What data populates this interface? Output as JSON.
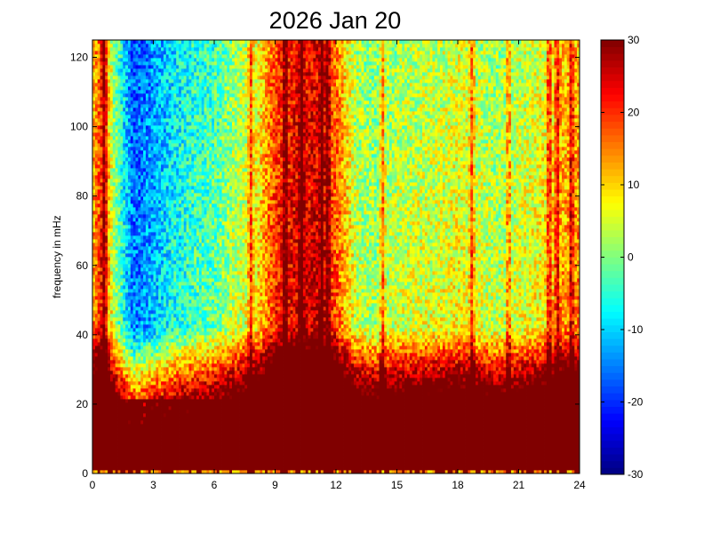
{
  "chart_data": {
    "type": "heatmap",
    "title": "2026 Jan 20",
    "xlabel": "",
    "ylabel": "frequency in mHz",
    "xlim": [
      0,
      24
    ],
    "ylim": [
      0,
      125
    ],
    "x_ticks": [
      "0",
      "3",
      "6",
      "9",
      "12",
      "15",
      "18",
      "21",
      "24"
    ],
    "y_ticks": [
      "0",
      "20",
      "40",
      "60",
      "80",
      "100",
      "120"
    ],
    "colorbar": {
      "range": [
        -30,
        30
      ],
      "ticks": [
        "-30",
        "-20",
        "-10",
        "0",
        "10",
        "20",
        "30"
      ],
      "colormap": "jet"
    },
    "grid": false,
    "background_level_by_hour": [
      [
        0,
        14
      ],
      [
        0.5,
        24
      ],
      [
        1,
        6
      ],
      [
        2,
        -14
      ],
      [
        3,
        -10
      ],
      [
        4,
        -5
      ],
      [
        5,
        -2
      ],
      [
        6,
        0
      ],
      [
        7,
        5
      ],
      [
        8,
        9
      ],
      [
        9,
        22
      ],
      [
        10,
        26
      ],
      [
        11,
        27
      ],
      [
        12,
        20
      ],
      [
        13,
        6
      ],
      [
        14,
        4
      ],
      [
        15,
        6
      ],
      [
        16,
        7
      ],
      [
        17,
        7
      ],
      [
        18,
        9
      ],
      [
        19,
        7
      ],
      [
        20,
        5
      ],
      [
        21,
        7
      ],
      [
        22,
        9
      ],
      [
        23,
        14
      ],
      [
        24,
        16
      ]
    ],
    "low_frequency_saturation_mHz": 22,
    "bright_streaks_hours": [
      0.6,
      7.8,
      9.5,
      10.3,
      11.3,
      11.6,
      14.3,
      18.7,
      20.5,
      22.5,
      22.9,
      23.6
    ]
  }
}
